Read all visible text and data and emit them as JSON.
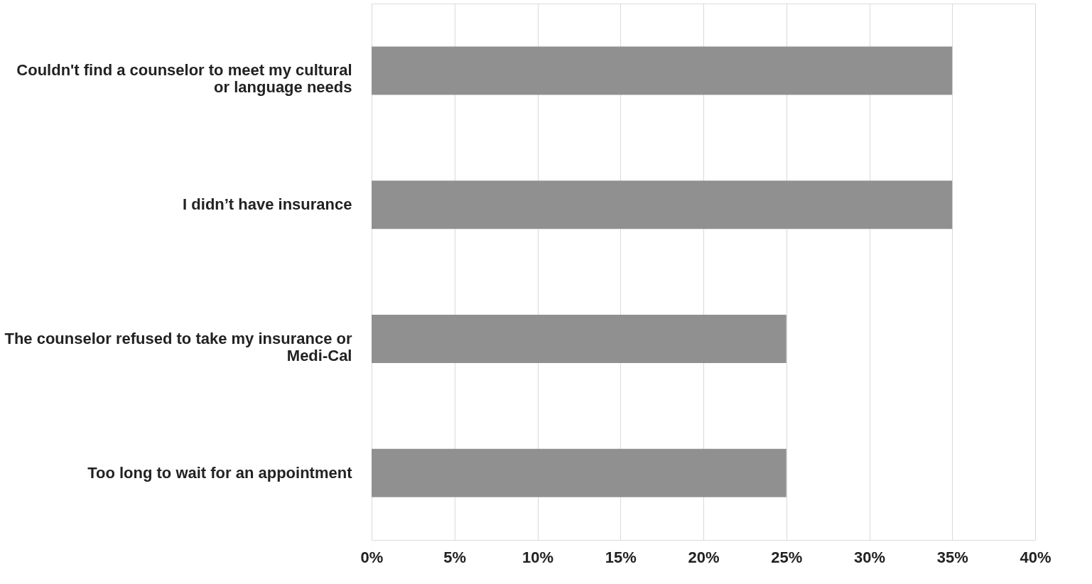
{
  "chart_data": {
    "type": "bar",
    "orientation": "horizontal",
    "categories": [
      "Couldn't find a counselor to meet my cultural or language needs",
      "I didn’t have insurance",
      "The counselor refused to take my insurance or Medi-Cal",
      "Too long to wait for an appointment"
    ],
    "values": [
      35,
      35,
      25,
      25
    ],
    "color": "#909090",
    "xlim": [
      0,
      40
    ],
    "xticks": [
      {
        "value": 0,
        "label": "0%"
      },
      {
        "value": 5,
        "label": "5%"
      },
      {
        "value": 10,
        "label": "10%"
      },
      {
        "value": 15,
        "label": "15%"
      },
      {
        "value": 20,
        "label": "20%"
      },
      {
        "value": 25,
        "label": "25%"
      },
      {
        "value": 30,
        "label": "30%"
      },
      {
        "value": 35,
        "label": "35%"
      },
      {
        "value": 40,
        "label": "40%"
      }
    ],
    "grid": "x"
  }
}
